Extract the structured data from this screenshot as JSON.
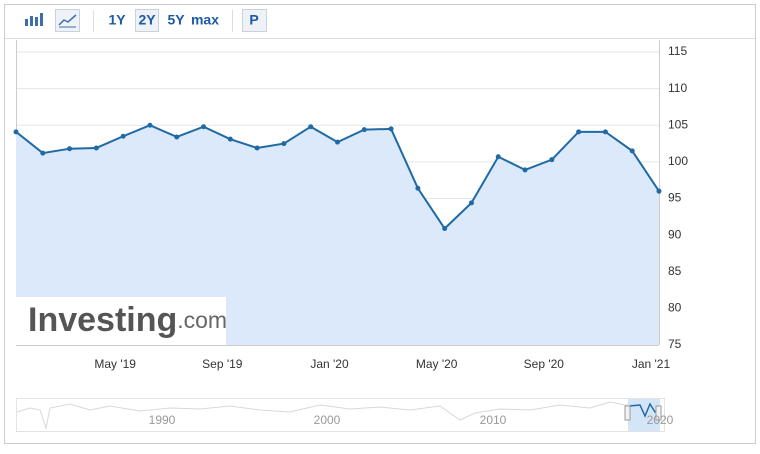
{
  "toolbar": {
    "buttons": [
      "1Y",
      "2Y",
      "5Y",
      "max",
      "P"
    ]
  },
  "chart_data": {
    "type": "area",
    "categories": [
      null,
      null,
      null,
      null,
      "May '19",
      null,
      null,
      null,
      "Sep '19",
      null,
      null,
      null,
      "Jan '20",
      null,
      null,
      null,
      "May '20",
      null,
      null,
      null,
      "Sep '20",
      null,
      null,
      null,
      "Jan '21"
    ],
    "values": [
      104.1,
      101.2,
      101.8,
      101.9,
      103.5,
      105.0,
      103.4,
      104.8,
      103.1,
      101.9,
      102.5,
      104.8,
      102.7,
      104.4,
      104.5,
      96.4,
      90.9,
      94.4,
      100.7,
      98.9,
      100.3,
      104.1,
      104.1,
      101.5,
      96.0
    ],
    "color": "#1f6aa5",
    "fill_color": "#dbe9fa",
    "ylim": [
      75,
      115
    ],
    "yticks": [
      75,
      80,
      85,
      90,
      95,
      100,
      105,
      110,
      115
    ],
    "grid": true
  },
  "watermark": {
    "brand": "Investing",
    "suffix": ".com"
  },
  "navigator": {
    "labels": [
      "1990",
      "2000",
      "2010",
      "2020"
    ]
  }
}
